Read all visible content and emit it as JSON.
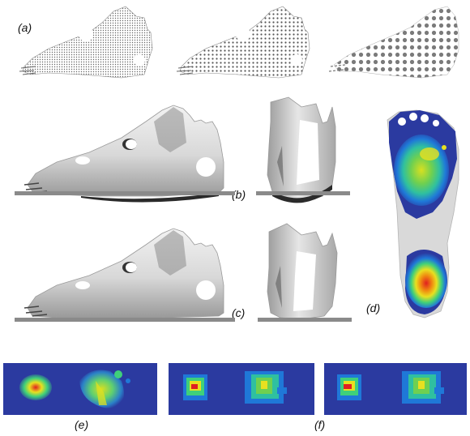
{
  "figure": {
    "labels": {
      "a": "(a)",
      "b": "(b)",
      "c": "(c)",
      "d": "(d)",
      "e": "(e)",
      "f": "(f)"
    },
    "colors": {
      "mesh": "#555555",
      "foot_light": "#ececec",
      "foot_mid": "#b9b9b9",
      "foot_dark": "#6e6e6e",
      "ground": "#8a8a8a",
      "map_bg": "#2b3aa0",
      "map_low": "#1f78d8",
      "map_mid": "#2fd3a0",
      "map_high": "#e8e020",
      "map_peak": "#e02020"
    }
  }
}
